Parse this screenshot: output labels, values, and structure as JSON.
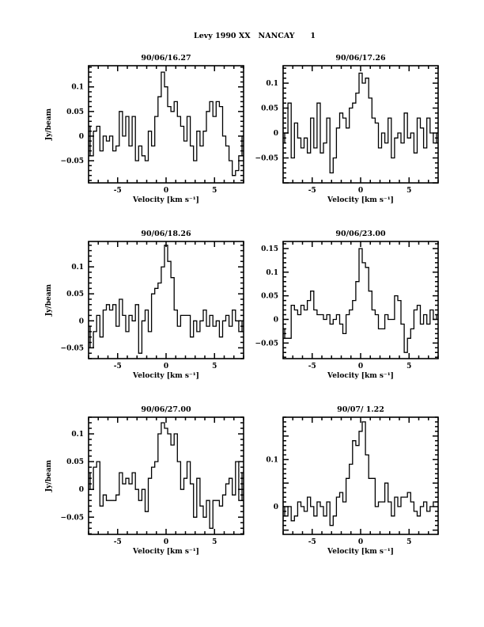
{
  "chart_data": {
    "title": "Levy 1990 XX   NANCAY      1",
    "type": "line",
    "panels": [
      {
        "title": "90/06/16.27",
        "xlabel": "Velocity [km s⁻¹]",
        "ylabel": "Jy/beam",
        "xlim": [
          -8,
          8
        ],
        "ylim": [
          -0.095,
          0.143
        ],
        "xticks": [
          -5,
          0,
          5
        ],
        "xtick_labels": [
          "-5",
          "0",
          "5"
        ],
        "yticks": [
          -0.05,
          0,
          0.05,
          0.1
        ],
        "ytick_labels": [
          "−0.05",
          "0",
          "0.05",
          "0.1"
        ],
        "y": [
          0.02,
          -0.04,
          0.01,
          0.02,
          -0.03,
          0.0,
          -0.01,
          0.0,
          -0.03,
          -0.02,
          0.05,
          0.0,
          0.04,
          -0.02,
          0.04,
          -0.05,
          -0.02,
          -0.04,
          -0.05,
          0.01,
          -0.02,
          0.04,
          0.08,
          0.13,
          0.1,
          0.06,
          0.05,
          0.07,
          0.04,
          0.02,
          -0.01,
          0.04,
          -0.02,
          -0.05,
          0.01,
          -0.02,
          0.01,
          0.05,
          0.07,
          0.04,
          0.07,
          0.06,
          0.0,
          -0.02,
          -0.05,
          -0.08,
          -0.07,
          -0.04,
          0.0
        ]
      },
      {
        "title": "90/06/17.26",
        "xlabel": "Velocity [km s⁻¹]",
        "ylabel": "",
        "xlim": [
          -8,
          8
        ],
        "ylim": [
          -0.1,
          0.135
        ],
        "xticks": [
          -5,
          0,
          5
        ],
        "xtick_labels": [
          "-5",
          "0",
          "5"
        ],
        "yticks": [
          -0.05,
          0,
          0.05,
          0.1
        ],
        "ytick_labels": [
          "−0.05",
          "0",
          "0.05",
          "0.1"
        ],
        "y": [
          -0.02,
          0.0,
          0.06,
          -0.05,
          0.02,
          -0.01,
          -0.03,
          -0.01,
          -0.04,
          0.03,
          -0.03,
          0.06,
          -0.04,
          -0.02,
          0.03,
          -0.08,
          -0.05,
          0.01,
          0.04,
          0.03,
          0.01,
          0.05,
          0.06,
          0.08,
          0.12,
          0.1,
          0.11,
          0.07,
          0.03,
          0.02,
          -0.03,
          0.0,
          -0.02,
          0.03,
          -0.05,
          -0.01,
          0.0,
          -0.02,
          0.04,
          -0.01,
          0.0,
          -0.04,
          0.03,
          0.01,
          -0.03,
          0.03,
          0.0,
          -0.02,
          0.0
        ]
      },
      {
        "title": "90/06/18.26",
        "xlabel": "Velocity [km s⁻¹]",
        "ylabel": "Jy/beam",
        "xlim": [
          -8,
          8
        ],
        "ylim": [
          -0.07,
          0.147
        ],
        "xticks": [
          -5,
          0,
          5
        ],
        "xtick_labels": [
          "-5",
          "0",
          "5"
        ],
        "yticks": [
          -0.05,
          0,
          0.05,
          0.1
        ],
        "ytick_labels": [
          "−0.05",
          "0",
          "0.05",
          "0.1"
        ],
        "y": [
          -0.01,
          -0.05,
          -0.02,
          0.01,
          -0.03,
          0.02,
          0.03,
          0.02,
          0.03,
          -0.01,
          0.04,
          0.01,
          -0.02,
          0.01,
          0.0,
          0.03,
          -0.06,
          0.0,
          0.02,
          -0.02,
          0.05,
          0.06,
          0.07,
          0.1,
          0.14,
          0.11,
          0.08,
          0.02,
          -0.01,
          0.01,
          0.01,
          0.01,
          -0.03,
          0.0,
          -0.02,
          0.0,
          0.02,
          -0.01,
          0.01,
          -0.01,
          0.0,
          -0.03,
          0.0,
          0.01,
          -0.01,
          0.02,
          0.0,
          -0.02,
          0.0
        ]
      },
      {
        "title": "90/06/23.00",
        "xlabel": "Velocity [km s⁻¹]",
        "ylabel": "",
        "xlim": [
          -8,
          8
        ],
        "ylim": [
          -0.083,
          0.165
        ],
        "xticks": [
          -5,
          0,
          5
        ],
        "xtick_labels": [
          "-5",
          "0",
          "5"
        ],
        "yticks": [
          -0.05,
          0,
          0.05,
          0.1,
          0.15
        ],
        "ytick_labels": [
          "−0.05",
          "0",
          "0.05",
          "0.1",
          "0.15"
        ],
        "y": [
          -0.02,
          -0.04,
          -0.04,
          0.03,
          0.02,
          0.01,
          0.03,
          0.02,
          0.04,
          0.06,
          0.02,
          0.01,
          0.01,
          0.0,
          0.01,
          -0.01,
          0.0,
          0.01,
          -0.01,
          -0.03,
          0.01,
          0.02,
          0.04,
          0.08,
          0.15,
          0.12,
          0.11,
          0.06,
          0.02,
          0.01,
          -0.02,
          -0.02,
          0.01,
          0.0,
          0.0,
          0.05,
          0.04,
          -0.01,
          -0.07,
          -0.04,
          -0.02,
          0.02,
          0.03,
          -0.01,
          0.01,
          -0.01,
          0.02,
          0.0,
          0.01
        ]
      },
      {
        "title": "90/06/27.00",
        "xlabel": "Velocity [km s⁻¹]",
        "ylabel": "Jy/beam",
        "xlim": [
          -8,
          8
        ],
        "ylim": [
          -0.081,
          0.13
        ],
        "xticks": [
          -5,
          0,
          5
        ],
        "xtick_labels": [
          "-5",
          "0",
          "5"
        ],
        "yticks": [
          -0.05,
          0,
          0.05,
          0.1
        ],
        "ytick_labels": [
          "−0.05",
          "0",
          "0.05",
          "0.1"
        ],
        "y": [
          0.03,
          0.0,
          0.04,
          0.05,
          -0.03,
          -0.01,
          -0.02,
          -0.02,
          -0.02,
          -0.01,
          0.03,
          0.01,
          0.02,
          0.01,
          0.03,
          0.0,
          -0.02,
          0.0,
          -0.04,
          0.02,
          0.04,
          0.05,
          0.1,
          0.12,
          0.11,
          0.1,
          0.08,
          0.1,
          0.05,
          0.0,
          0.02,
          0.05,
          0.01,
          -0.05,
          0.02,
          -0.03,
          -0.05,
          -0.02,
          -0.07,
          -0.02,
          -0.02,
          -0.03,
          -0.01,
          0.01,
          0.02,
          -0.01,
          0.05,
          -0.02,
          0.03
        ]
      },
      {
        "title": "90/07/ 1.22",
        "xlabel": "Velocity [km s⁻¹]",
        "ylabel": "",
        "xlim": [
          -8,
          8
        ],
        "ylim": [
          -0.059,
          0.19
        ],
        "xticks": [
          -5,
          0,
          5
        ],
        "xtick_labels": [
          "-5",
          "0",
          "5"
        ],
        "yticks": [
          0,
          0.1
        ],
        "ytick_labels": [
          "0",
          "0.1"
        ],
        "y": [
          0.0,
          -0.02,
          0.0,
          -0.03,
          -0.02,
          0.01,
          0.0,
          -0.01,
          0.02,
          0.0,
          -0.02,
          0.01,
          0.0,
          -0.02,
          0.01,
          -0.04,
          -0.02,
          0.02,
          0.03,
          0.01,
          0.06,
          0.09,
          0.14,
          0.13,
          0.16,
          0.18,
          0.11,
          0.06,
          0.06,
          0.0,
          0.01,
          0.01,
          0.05,
          0.01,
          -0.02,
          0.02,
          0.0,
          0.02,
          0.02,
          0.03,
          0.01,
          -0.01,
          -0.02,
          0.0,
          0.01,
          -0.01,
          0.0,
          0.01,
          0.01
        ]
      }
    ]
  }
}
